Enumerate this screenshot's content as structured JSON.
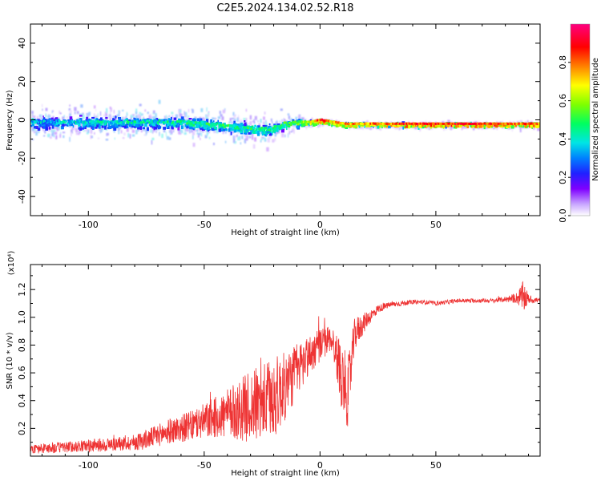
{
  "figure": {
    "title": "C2E5.2024.134.02.52.R18"
  },
  "chart_data": [
    {
      "type": "heatmap",
      "name": "spectrogram",
      "xlabel": "Height of straight line (km)",
      "ylabel": "Frequency (Hz)",
      "xlim": [
        -125,
        95
      ],
      "ylim": [
        -50,
        50
      ],
      "xticks": [
        -100,
        -50,
        0,
        50
      ],
      "xtick_labels": [
        "-100",
        "-50",
        "0",
        "50"
      ],
      "yticks": [
        -40,
        -20,
        0,
        20,
        40
      ],
      "ytick_labels": [
        "-40",
        "-20",
        "0",
        "20",
        "40"
      ],
      "colorbar": {
        "label": "Normalized spectral amplitude",
        "range": [
          0,
          1
        ],
        "ticks": [
          0.0,
          0.2,
          0.4,
          0.6,
          0.8
        ],
        "tick_labels": [
          "0.0",
          "0.2",
          "0.4",
          "0.6",
          "0.8"
        ]
      },
      "ridge": {
        "x": [
          -125,
          -110,
          -100,
          -90,
          -80,
          -70,
          -60,
          -50,
          -40,
          -30,
          -25,
          -20,
          -15,
          -10,
          -5,
          0,
          5,
          10,
          20,
          30,
          40,
          50,
          60,
          70,
          80,
          95
        ],
        "freq": [
          -1,
          -1,
          -1,
          -1,
          -1,
          -1,
          -1,
          -2,
          -3,
          -4,
          -5,
          -4,
          -2,
          -1,
          -1,
          0,
          -1,
          -2,
          -2,
          -2,
          -2,
          -2,
          -2,
          -2,
          -2,
          -2
        ],
        "amplitude": [
          0.35,
          0.35,
          0.4,
          0.4,
          0.4,
          0.4,
          0.4,
          0.45,
          0.45,
          0.45,
          0.45,
          0.45,
          0.5,
          0.55,
          0.65,
          0.85,
          0.7,
          0.75,
          0.75,
          0.8,
          0.85,
          0.85,
          0.85,
          0.85,
          0.8,
          0.8
        ]
      }
    },
    {
      "type": "line",
      "name": "snr",
      "xlabel": "Height of straight line (km)",
      "ylabel": "SNR (10 * v/v)",
      "y_scale_label": "(x10⁴)",
      "xlim": [
        -125,
        95
      ],
      "ylim": [
        0,
        1.38
      ],
      "xticks": [
        -100,
        -50,
        0,
        50
      ],
      "xtick_labels": [
        "-100",
        "-50",
        "0",
        "50"
      ],
      "yticks": [
        0.2,
        0.4,
        0.6,
        0.8,
        1.0,
        1.2
      ],
      "ytick_labels": [
        "0.2",
        "0.4",
        "0.6",
        "0.8",
        "1.0",
        "1.2"
      ],
      "color": "#ee3333",
      "series": [
        {
          "name": "SNR",
          "x": [
            -125,
            -115,
            -105,
            -95,
            -85,
            -80,
            -75,
            -70,
            -65,
            -60,
            -55,
            -50,
            -45,
            -40,
            -35,
            -30,
            -25,
            -20,
            -15,
            -10,
            -5,
            0,
            5,
            10,
            12,
            15,
            20,
            25,
            30,
            35,
            40,
            45,
            50,
            55,
            60,
            65,
            70,
            75,
            80,
            85,
            88,
            90,
            95
          ],
          "y": [
            0.05,
            0.06,
            0.07,
            0.08,
            0.09,
            0.1,
            0.12,
            0.15,
            0.18,
            0.2,
            0.22,
            0.25,
            0.28,
            0.3,
            0.33,
            0.36,
            0.38,
            0.42,
            0.5,
            0.62,
            0.72,
            0.8,
            0.85,
            0.55,
            0.45,
            0.88,
            0.98,
            1.06,
            1.09,
            1.1,
            1.11,
            1.11,
            1.1,
            1.11,
            1.12,
            1.12,
            1.12,
            1.12,
            1.13,
            1.14,
            1.15,
            1.13,
            1.12
          ],
          "noise": [
            0.03,
            0.04,
            0.04,
            0.05,
            0.05,
            0.06,
            0.07,
            0.08,
            0.09,
            0.1,
            0.11,
            0.13,
            0.15,
            0.18,
            0.22,
            0.26,
            0.28,
            0.3,
            0.25,
            0.2,
            0.15,
            0.12,
            0.1,
            0.25,
            0.25,
            0.12,
            0.06,
            0.03,
            0.02,
            0.02,
            0.015,
            0.015,
            0.015,
            0.015,
            0.015,
            0.015,
            0.015,
            0.015,
            0.02,
            0.04,
            0.12,
            0.03,
            0.02
          ]
        }
      ]
    }
  ]
}
